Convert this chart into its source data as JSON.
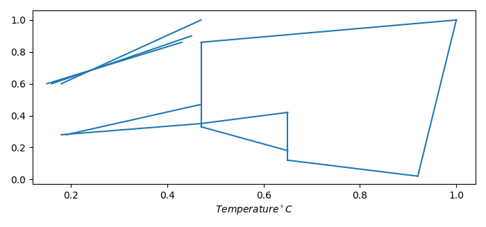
{
  "lines": [
    {
      "x": [
        0.15,
        0.43
      ],
      "y": [
        0.6,
        0.86
      ]
    },
    {
      "x": [
        0.16,
        0.45
      ],
      "y": [
        0.6,
        0.9
      ]
    },
    {
      "x": [
        0.18,
        0.47
      ],
      "y": [
        0.6,
        1.0
      ]
    },
    {
      "x": [
        0.18,
        0.47
      ],
      "y": [
        0.28,
        0.35
      ]
    },
    {
      "x": [
        0.19,
        0.47
      ],
      "y": [
        0.28,
        0.47
      ]
    },
    {
      "x": [
        0.47,
        0.47
      ],
      "y": [
        0.86,
        0.33
      ]
    },
    {
      "x": [
        0.47,
        0.65
      ],
      "y": [
        0.35,
        0.42
      ]
    },
    {
      "x": [
        0.47,
        0.65
      ],
      "y": [
        0.33,
        0.18
      ]
    },
    {
      "x": [
        0.65,
        0.65
      ],
      "y": [
        0.42,
        0.12
      ]
    },
    {
      "x": [
        0.47,
        1.0
      ],
      "y": [
        0.86,
        1.0
      ]
    },
    {
      "x": [
        0.65,
        0.92
      ],
      "y": [
        0.12,
        0.02
      ]
    },
    {
      "x": [
        0.92,
        1.0
      ],
      "y": [
        0.02,
        1.0
      ]
    }
  ],
  "line_color": "#1f77b4",
  "line_width": 1.5,
  "xlabel": "Temperature$^\\circ$C",
  "xlim": [
    0.12,
    1.04
  ],
  "ylim": [
    -0.03,
    1.06
  ],
  "xticks": [
    0.2,
    0.4,
    0.6,
    0.8,
    1.0
  ],
  "yticks": [
    0.0,
    0.2,
    0.4,
    0.6,
    0.8,
    1.0
  ]
}
